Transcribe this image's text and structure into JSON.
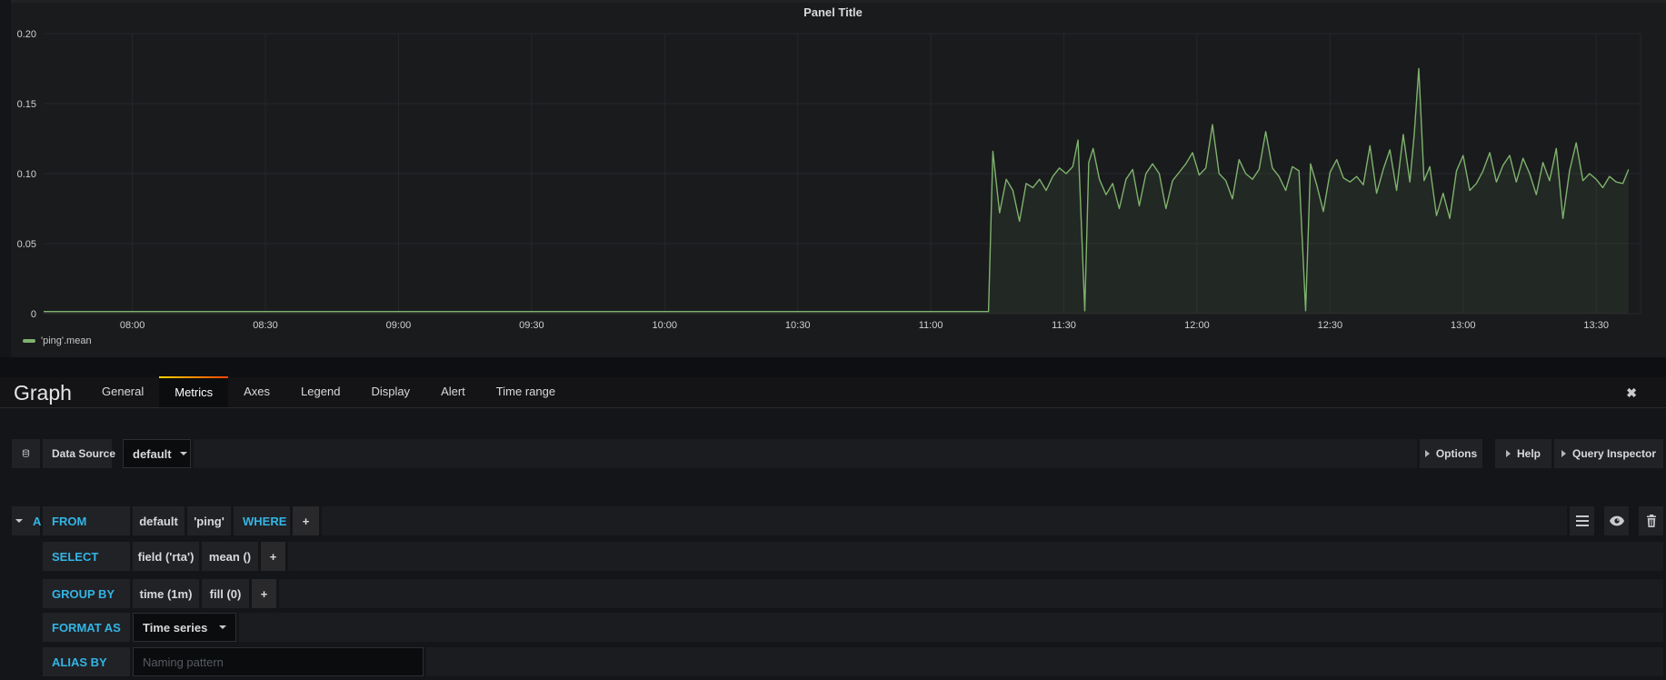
{
  "chart_data": {
    "type": "line",
    "title": "Panel Title",
    "x_range": {
      "min": -20,
      "max": 340
    },
    "y_range": {
      "min": 0,
      "max": 0.2
    },
    "grid": true,
    "legend_position": "bottom-left",
    "x_ticks": [
      {
        "minute": 0,
        "label": "08:00"
      },
      {
        "minute": 30,
        "label": "08:30"
      },
      {
        "minute": 60,
        "label": "09:00"
      },
      {
        "minute": 90,
        "label": "09:30"
      },
      {
        "minute": 120,
        "label": "10:00"
      },
      {
        "minute": 150,
        "label": "10:30"
      },
      {
        "minute": 180,
        "label": "11:00"
      },
      {
        "minute": 210,
        "label": "11:30"
      },
      {
        "minute": 240,
        "label": "12:00"
      },
      {
        "minute": 270,
        "label": "12:30"
      },
      {
        "minute": 300,
        "label": "13:00"
      },
      {
        "minute": 330,
        "label": "13:30"
      }
    ],
    "y_ticks": [
      {
        "v": 0,
        "label": "0"
      },
      {
        "v": 0.05,
        "label": "0.05"
      },
      {
        "v": 0.1,
        "label": "0.10"
      },
      {
        "v": 0.15,
        "label": "0.15"
      },
      {
        "v": 0.2,
        "label": "0.20"
      }
    ],
    "series": [
      {
        "name": "'ping'.mean",
        "color": "#7eb26d",
        "points": [
          [
            -20,
            0.0015
          ],
          [
            193,
            0.0015
          ],
          [
            194,
            0.116
          ],
          [
            195.5,
            0.072
          ],
          [
            197,
            0.096
          ],
          [
            198.5,
            0.088
          ],
          [
            200,
            0.066
          ],
          [
            201.5,
            0.093
          ],
          [
            203,
            0.09
          ],
          [
            204.5,
            0.096
          ],
          [
            206,
            0.088
          ],
          [
            207.5,
            0.098
          ],
          [
            209,
            0.104
          ],
          [
            210.5,
            0.1
          ],
          [
            212,
            0.105
          ],
          [
            213.2,
            0.124
          ],
          [
            214.7,
            0.002
          ],
          [
            215.6,
            0.108
          ],
          [
            216.6,
            0.118
          ],
          [
            218,
            0.096
          ],
          [
            219.5,
            0.085
          ],
          [
            221,
            0.093
          ],
          [
            222.5,
            0.075
          ],
          [
            224,
            0.096
          ],
          [
            225.5,
            0.103
          ],
          [
            227,
            0.077
          ],
          [
            228.5,
            0.1
          ],
          [
            230,
            0.107
          ],
          [
            231.5,
            0.1
          ],
          [
            233,
            0.075
          ],
          [
            234.5,
            0.095
          ],
          [
            236,
            0.101
          ],
          [
            237.5,
            0.107
          ],
          [
            239,
            0.115
          ],
          [
            240.5,
            0.099
          ],
          [
            242,
            0.104
          ],
          [
            243.5,
            0.135
          ],
          [
            245,
            0.1
          ],
          [
            246.5,
            0.095
          ],
          [
            248,
            0.082
          ],
          [
            249.5,
            0.11
          ],
          [
            251,
            0.1
          ],
          [
            252.5,
            0.096
          ],
          [
            254,
            0.103
          ],
          [
            255.5,
            0.13
          ],
          [
            257,
            0.104
          ],
          [
            258.5,
            0.098
          ],
          [
            260,
            0.088
          ],
          [
            261.5,
            0.105
          ],
          [
            263,
            0.102
          ],
          [
            264.5,
            0.002
          ],
          [
            265.6,
            0.107
          ],
          [
            267,
            0.092
          ],
          [
            268.5,
            0.073
          ],
          [
            270,
            0.101
          ],
          [
            271.5,
            0.11
          ],
          [
            273,
            0.097
          ],
          [
            274.5,
            0.094
          ],
          [
            276,
            0.098
          ],
          [
            277.5,
            0.092
          ],
          [
            279,
            0.12
          ],
          [
            280.5,
            0.086
          ],
          [
            282,
            0.103
          ],
          [
            283.5,
            0.117
          ],
          [
            285,
            0.088
          ],
          [
            286.5,
            0.128
          ],
          [
            288,
            0.094
          ],
          [
            289,
            0.129
          ],
          [
            290,
            0.175
          ],
          [
            291.2,
            0.095
          ],
          [
            292.5,
            0.105
          ],
          [
            294,
            0.07
          ],
          [
            295.5,
            0.086
          ],
          [
            297,
            0.068
          ],
          [
            298.5,
            0.102
          ],
          [
            300,
            0.113
          ],
          [
            301.5,
            0.088
          ],
          [
            303,
            0.093
          ],
          [
            304.5,
            0.102
          ],
          [
            306,
            0.115
          ],
          [
            307.5,
            0.094
          ],
          [
            309,
            0.106
          ],
          [
            310.5,
            0.113
          ],
          [
            312,
            0.094
          ],
          [
            313.5,
            0.111
          ],
          [
            315,
            0.1
          ],
          [
            316.5,
            0.085
          ],
          [
            318,
            0.108
          ],
          [
            319.5,
            0.095
          ],
          [
            321,
            0.118
          ],
          [
            322.5,
            0.068
          ],
          [
            324,
            0.102
          ],
          [
            325.5,
            0.122
          ],
          [
            327,
            0.095
          ],
          [
            328.5,
            0.1
          ],
          [
            330,
            0.096
          ],
          [
            331.5,
            0.09
          ],
          [
            333,
            0.098
          ],
          [
            334.5,
            0.094
          ],
          [
            336,
            0.093
          ],
          [
            337.3,
            0.103
          ]
        ]
      }
    ]
  },
  "tabs": {
    "page_title": "Graph",
    "items": [
      {
        "label": "General"
      },
      {
        "label": "Metrics"
      },
      {
        "label": "Axes"
      },
      {
        "label": "Legend"
      },
      {
        "label": "Display"
      },
      {
        "label": "Alert"
      },
      {
        "label": "Time range"
      }
    ],
    "close_icon": "✖"
  },
  "datasource_row": {
    "label": "Data Source",
    "value": "default",
    "buttons": [
      {
        "label": "Options"
      },
      {
        "label": "Help"
      },
      {
        "label": "Query Inspector"
      }
    ]
  },
  "query": {
    "ref_id": "A",
    "from": {
      "keyword": "FROM",
      "seg1": "default",
      "seg2": "'ping'",
      "seg3": "WHERE",
      "add": "+"
    },
    "select": {
      "keyword": "SELECT",
      "seg1": "field ('rta')",
      "seg2": "mean ()",
      "add": "+"
    },
    "group_by": {
      "keyword": "GROUP BY",
      "seg1": "time (1m)",
      "seg2": "fill (0)",
      "add": "+"
    },
    "format_as": {
      "keyword": "FORMAT AS",
      "value": "Time series"
    },
    "alias_by": {
      "keyword": "ALIAS BY",
      "placeholder": "Naming pattern"
    }
  },
  "colors": {
    "series_green": "#7eb26d",
    "keyword_blue": "#33b5e5",
    "active_tab_gradient_start": "#ffd500",
    "active_tab_gradient_end": "#ff4400"
  }
}
